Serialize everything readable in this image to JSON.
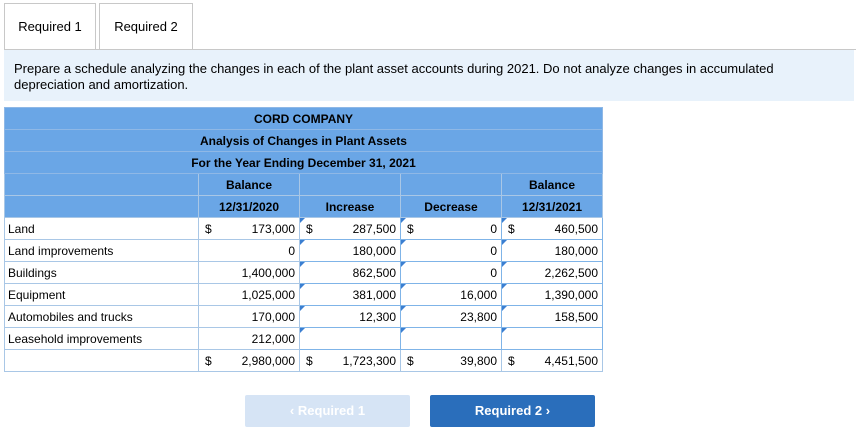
{
  "tabs": [
    "Required 1",
    "Required 2"
  ],
  "instructions": "Prepare a schedule analyzing the changes in each of the plant asset accounts during 2021. Do not analyze changes in accumulated depreciation and amortization.",
  "schedule": {
    "company": "CORD COMPANY",
    "title": "Analysis of Changes in Plant Assets",
    "period": "For the Year Ending December 31, 2021",
    "headers": {
      "balance_begin_1": "Balance",
      "balance_begin_2": "12/31/2020",
      "increase": "Increase",
      "decrease": "Decrease",
      "balance_end_1": "Balance",
      "balance_end_2": "12/31/2021"
    },
    "currency": "$",
    "rows": [
      {
        "label": "Land",
        "begin": "173,000",
        "increase": "287,500",
        "decrease": "0",
        "end": "460,500"
      },
      {
        "label": "Land improvements",
        "begin": "0",
        "increase": "180,000",
        "decrease": "0",
        "end": "180,000"
      },
      {
        "label": "Buildings",
        "begin": "1,400,000",
        "increase": "862,500",
        "decrease": "0",
        "end": "2,262,500"
      },
      {
        "label": "Equipment",
        "begin": "1,025,000",
        "increase": "381,000",
        "decrease": "16,000",
        "end": "1,390,000"
      },
      {
        "label": "Automobiles and trucks",
        "begin": "170,000",
        "increase": "12,300",
        "decrease": "23,800",
        "end": "158,500"
      },
      {
        "label": "Leasehold improvements",
        "begin": "212,000",
        "increase": "",
        "decrease": "",
        "end": ""
      }
    ],
    "totals": {
      "begin": "2,980,000",
      "increase": "1,723,300",
      "decrease": "39,800",
      "end": "4,451,500"
    }
  },
  "nav": {
    "prev": "Required 1",
    "next": "Required 2"
  },
  "colors": {
    "header_bg": "#6aa6e6",
    "instructions_bg": "#e8f2fb",
    "next_button": "#2a6ebb",
    "prev_button": "#d6e4f5"
  }
}
